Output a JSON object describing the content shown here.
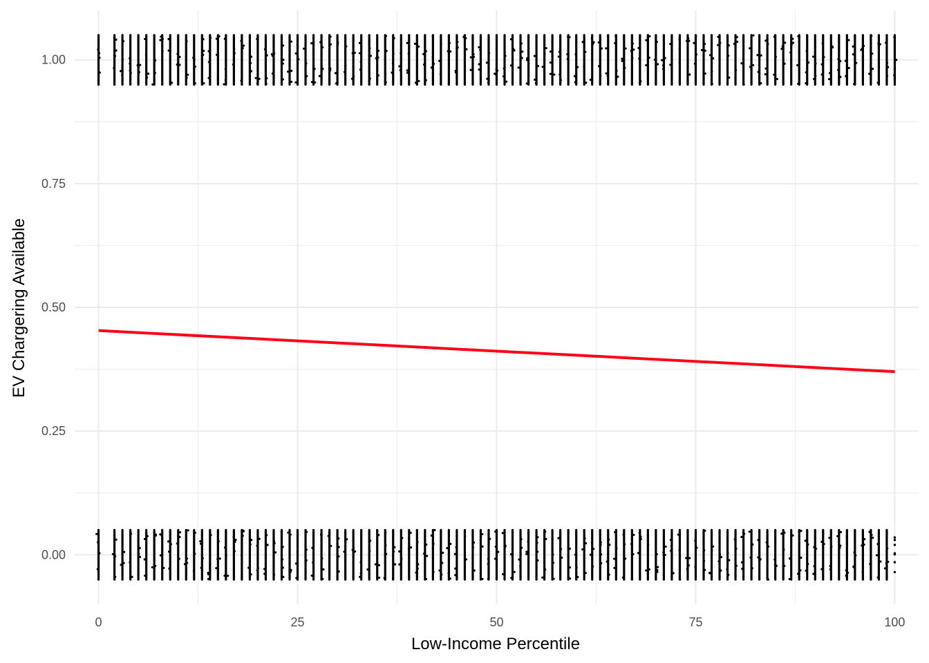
{
  "chart_data": {
    "type": "scatter",
    "title": "",
    "xlabel": "Low-Income Percentile",
    "ylabel": "EV Chargering Available",
    "xlim": [
      -3,
      103
    ],
    "ylim": [
      -0.1,
      1.1
    ],
    "x_ticks": [
      0,
      25,
      50,
      75,
      100
    ],
    "x_tick_labels": [
      "0",
      "25",
      "50",
      "75",
      "100"
    ],
    "y_ticks": [
      0,
      0.25,
      0.5,
      0.75,
      1.0
    ],
    "y_tick_labels": [
      "0.00",
      "0.25",
      "0.50",
      "0.75",
      "1.00"
    ],
    "grid": true,
    "legend": "none",
    "series": [
      {
        "type": "scatter",
        "description": "jittered binary outcome (0 or 1) at each integer percentile",
        "x_values": "integers 0-100 (excluding 1)",
        "y_levels": [
          0,
          1
        ],
        "jitter_height": 0.05,
        "color": "#000000"
      },
      {
        "type": "line",
        "description": "linear fit",
        "x": [
          0,
          100
        ],
        "y": [
          0.453,
          0.37
        ],
        "color": "#ff0019"
      }
    ]
  }
}
